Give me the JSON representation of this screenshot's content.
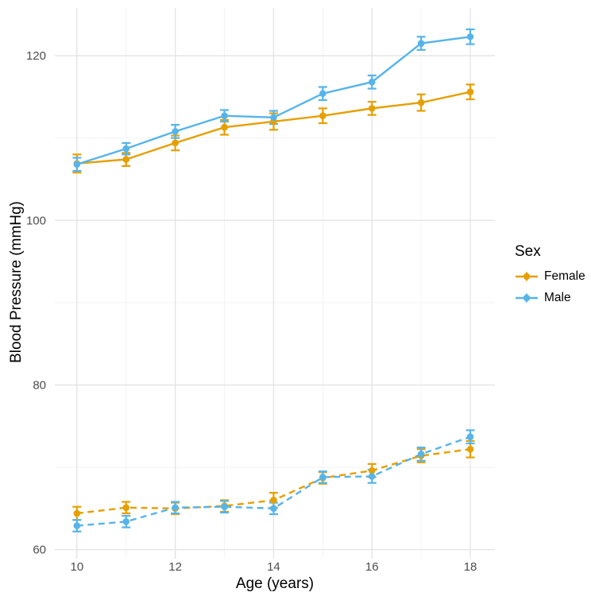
{
  "chart_data": {
    "type": "line",
    "title": "",
    "xlabel": "Age (years)",
    "ylabel": "Blood Pressure (mmHg)",
    "x": [
      10,
      11,
      12,
      13,
      14,
      15,
      16,
      17,
      18
    ],
    "xlim": [
      9.55,
      18.5
    ],
    "ylim": [
      58.9,
      125.8
    ],
    "x_major_ticks": [
      10,
      12,
      14,
      16,
      18
    ],
    "x_minor_ticks": [
      11,
      13,
      15,
      17
    ],
    "y_major_ticks": [
      60,
      80,
      100,
      120
    ],
    "y_minor_ticks": [
      70,
      90,
      110
    ],
    "grid": "major+minor",
    "error_bars": true,
    "legend_position": "right",
    "legend": {
      "title": "Sex",
      "items": [
        {
          "label": "Female",
          "color": "#E69F00"
        },
        {
          "label": "Male",
          "color": "#56B4E9"
        }
      ]
    },
    "series": [
      {
        "name": "Female",
        "measure": "systolic",
        "color": "#E69F00",
        "line_style": "solid",
        "values": [
          106.9,
          107.4,
          109.4,
          111.3,
          112.0,
          112.7,
          113.6,
          114.3,
          115.6
        ],
        "errors": [
          1.1,
          0.8,
          0.9,
          0.9,
          1.0,
          0.9,
          0.8,
          1.0,
          0.9
        ]
      },
      {
        "name": "Male",
        "measure": "systolic",
        "color": "#56B4E9",
        "line_style": "solid",
        "values": [
          106.8,
          108.7,
          110.8,
          112.7,
          112.5,
          115.4,
          116.8,
          121.5,
          122.3
        ],
        "errors": [
          0.8,
          0.7,
          0.8,
          0.7,
          0.8,
          0.8,
          0.8,
          0.8,
          0.9
        ]
      },
      {
        "name": "Female",
        "measure": "diastolic",
        "color": "#E69F00",
        "line_style": "dashed",
        "values": [
          64.4,
          65.1,
          65.0,
          65.3,
          66.0,
          68.7,
          69.6,
          71.4,
          72.2
        ],
        "errors": [
          0.8,
          0.7,
          0.7,
          0.7,
          0.9,
          0.7,
          0.8,
          0.8,
          1.0
        ]
      },
      {
        "name": "Male",
        "measure": "diastolic",
        "color": "#56B4E9",
        "line_style": "dashed",
        "values": [
          62.9,
          63.4,
          65.1,
          65.2,
          65.0,
          68.8,
          68.9,
          71.6,
          73.7
        ],
        "errors": [
          0.7,
          0.7,
          0.7,
          0.7,
          0.7,
          0.7,
          0.8,
          0.8,
          0.8
        ]
      }
    ]
  },
  "colors": {
    "grid_major": "#E3E3E3",
    "grid_minor": "#F2F2F2",
    "tick_text": "#4D4D4D",
    "axis_title_text": "#000000",
    "background": "#FFFFFF"
  }
}
